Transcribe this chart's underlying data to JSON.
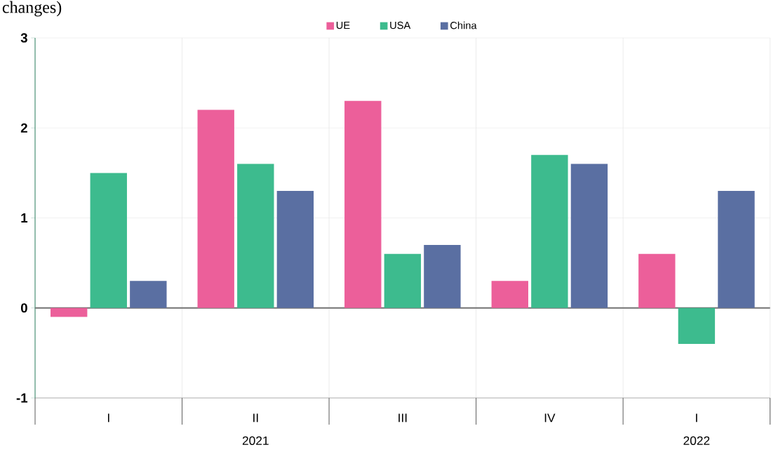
{
  "chart_data": {
    "type": "bar",
    "categories": [
      "I",
      "II",
      "III",
      "IV",
      "I"
    ],
    "series": [
      {
        "name": "UE",
        "color": "#ec5f9a",
        "values": [
          -0.1,
          2.2,
          2.3,
          0.3,
          0.6
        ]
      },
      {
        "name": "USA",
        "color": "#3dbb8e",
        "values": [
          1.5,
          1.6,
          0.6,
          1.7,
          -0.4
        ]
      },
      {
        "name": "China",
        "color": "#5a6fa2",
        "values": [
          0.3,
          1.3,
          0.7,
          1.6,
          1.3
        ]
      }
    ],
    "ylim": [
      -1,
      3
    ],
    "yticks": [
      -1,
      0,
      1,
      2,
      3
    ],
    "grid": true,
    "legend": "top",
    "annotations": [
      "changes)",
      "2021",
      "2022"
    ]
  }
}
